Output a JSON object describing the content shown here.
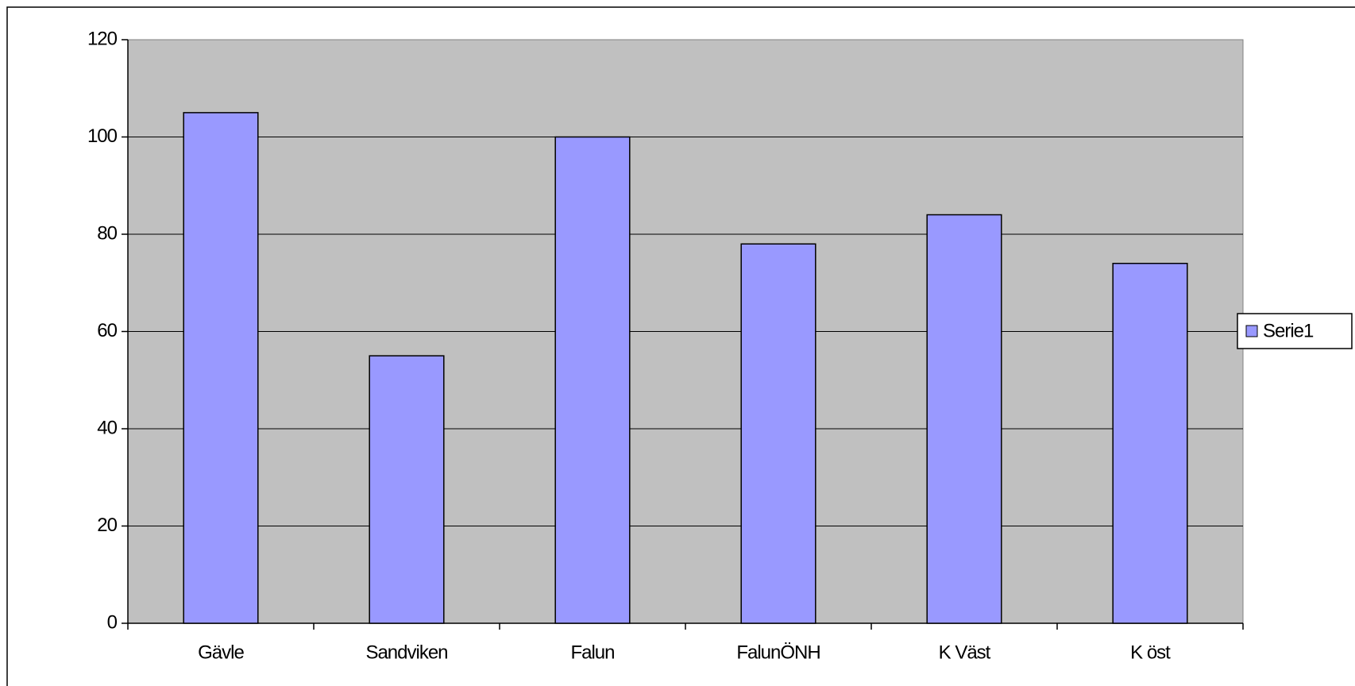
{
  "chart_data": {
    "type": "bar",
    "categories": [
      "Gävle",
      "Sandviken",
      "Falun",
      "FalunÖNH",
      "K Väst",
      "K öst"
    ],
    "series": [
      {
        "name": "Serie1",
        "color": "#9999ff",
        "values": [
          105,
          55,
          100,
          78,
          84,
          74
        ]
      }
    ],
    "ylim": [
      0,
      120
    ],
    "yticks": [
      0,
      20,
      40,
      60,
      80,
      100,
      120
    ],
    "grid": true,
    "plot_background": "#c0c0c0",
    "legend": "right"
  }
}
